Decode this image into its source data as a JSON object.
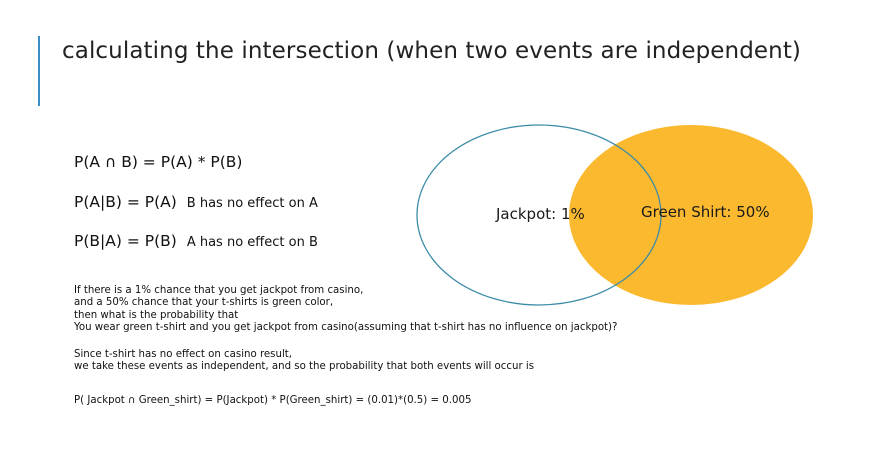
{
  "slide": {
    "title": "calculating the intersection (when two events are independent)"
  },
  "formulas": [
    {
      "expr": "P(A ∩ B) = P(A) * P(B)",
      "note": ""
    },
    {
      "expr": "P(A|B) = P(A)",
      "note": "B has no effect on A"
    },
    {
      "expr": "P(B|A) = P(B)",
      "note": "A has no effect on B"
    }
  ],
  "venn": {
    "left_label": "Jackpot: 1%",
    "right_label": "Green Shirt: 50%",
    "left_stroke": "#3b8ca8",
    "right_fill": "#fbb92f"
  },
  "paragraphs": {
    "question": [
      "If there is a 1% chance that you get jackpot from casino,",
      "and a 50% chance that your t-shirts is green color,",
      "then what is the probability that",
      "You wear green t-shirt and you get jackpot from casino(assuming that t-shirt has no influence on jackpot)?"
    ],
    "reasoning": [
      "Since t-shirt has no effect on casino result,",
      "we take these events as independent, and so the probability that both events will occur is"
    ],
    "result": "P( Jackpot ∩ Green_shirt) = P(Jackpot) * P(Green_shirt) = (0.01)*(0.5) = 0.005"
  }
}
